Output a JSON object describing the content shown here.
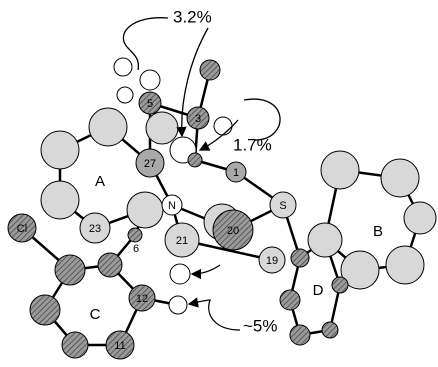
{
  "annotations": [
    "3.2%",
    "1.7%",
    "~5%"
  ],
  "atom_labels": [
    "5",
    "3",
    "27",
    "1",
    "N",
    "S",
    "Cl",
    "23",
    "6",
    "21",
    "20",
    "19",
    "12",
    "11"
  ],
  "ring_labels": [
    "A",
    "B",
    "C",
    "D"
  ]
}
